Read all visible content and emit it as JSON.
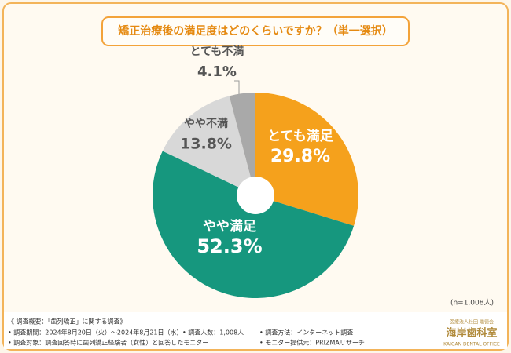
{
  "chart_data": {
    "type": "pie",
    "title": "矯正治療後の満足度はどのくらいですか？（単一選択）",
    "categories": [
      "とても満足",
      "やや満足",
      "やや不満",
      "とても不満"
    ],
    "values": [
      29.8,
      52.3,
      13.8,
      4.1
    ],
    "value_labels": [
      "29.8%",
      "52.3%",
      "13.8%",
      "4.1%"
    ],
    "colors": [
      "#f5a11c",
      "#16977e",
      "#d8d8d8",
      "#a9a9a9"
    ],
    "note": "(n=1,008人)",
    "footer": [
      "《 調査概要：「歯列矯正」に関する調査》",
      "• 調査期間：2024年8月20日（火）～2024年8月21日（水）",
      "• 調査人数：1,008人",
      "• 調査方法：インターネット調査",
      "• 調査対象：調査回答時に歯列矯正経験者（女性）と回答したモニター",
      "• モニター提供元：PRIZMAリサーチ"
    ],
    "logo": [
      "医療法人社団 鼎徳会",
      "海岸歯科室",
      "KAIGAN DENTAL OFFICE"
    ]
  }
}
